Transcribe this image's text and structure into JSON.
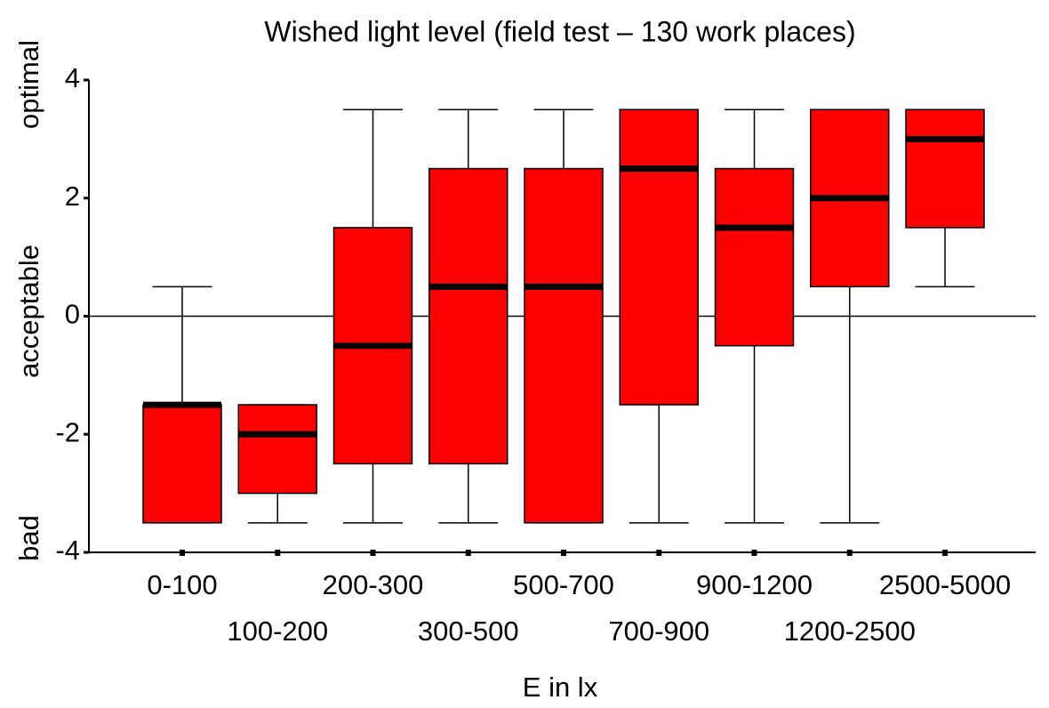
{
  "chart_data": {
    "type": "box",
    "title": "Wished light level (field test – 130 work places)",
    "xlabel": "E in lx",
    "y_side_labels": [
      "optimal",
      "acceptable",
      "bad"
    ],
    "categories": [
      "0-100",
      "100-200",
      "200-300",
      "300-500",
      "500-700",
      "700-900",
      "900-1200",
      "1200-2500",
      "2500-5000"
    ],
    "min": [
      -3.5,
      -3.5,
      -3.5,
      -3.5,
      -3.5,
      -3.5,
      -3.5,
      -3.5,
      0.5
    ],
    "q1": [
      -3.5,
      -3,
      -2.5,
      -2.5,
      -3.5,
      -1.5,
      -0.5,
      0.5,
      1.5
    ],
    "median": [
      -1.5,
      -2,
      -0.5,
      0.5,
      0.5,
      2.5,
      1.5,
      2,
      3
    ],
    "q3": [
      -1.5,
      -1.5,
      1.5,
      2.5,
      2.5,
      3.5,
      2.5,
      3.5,
      3.5
    ],
    "max": [
      0.5,
      -1.5,
      3.5,
      3.5,
      3.5,
      3.5,
      3.5,
      3.5,
      3.5
    ],
    "color": "#ff0000",
    "ylim": [
      -4,
      4
    ],
    "yticks": [
      -4,
      -2,
      0,
      2,
      4
    ],
    "zero_line": true
  }
}
